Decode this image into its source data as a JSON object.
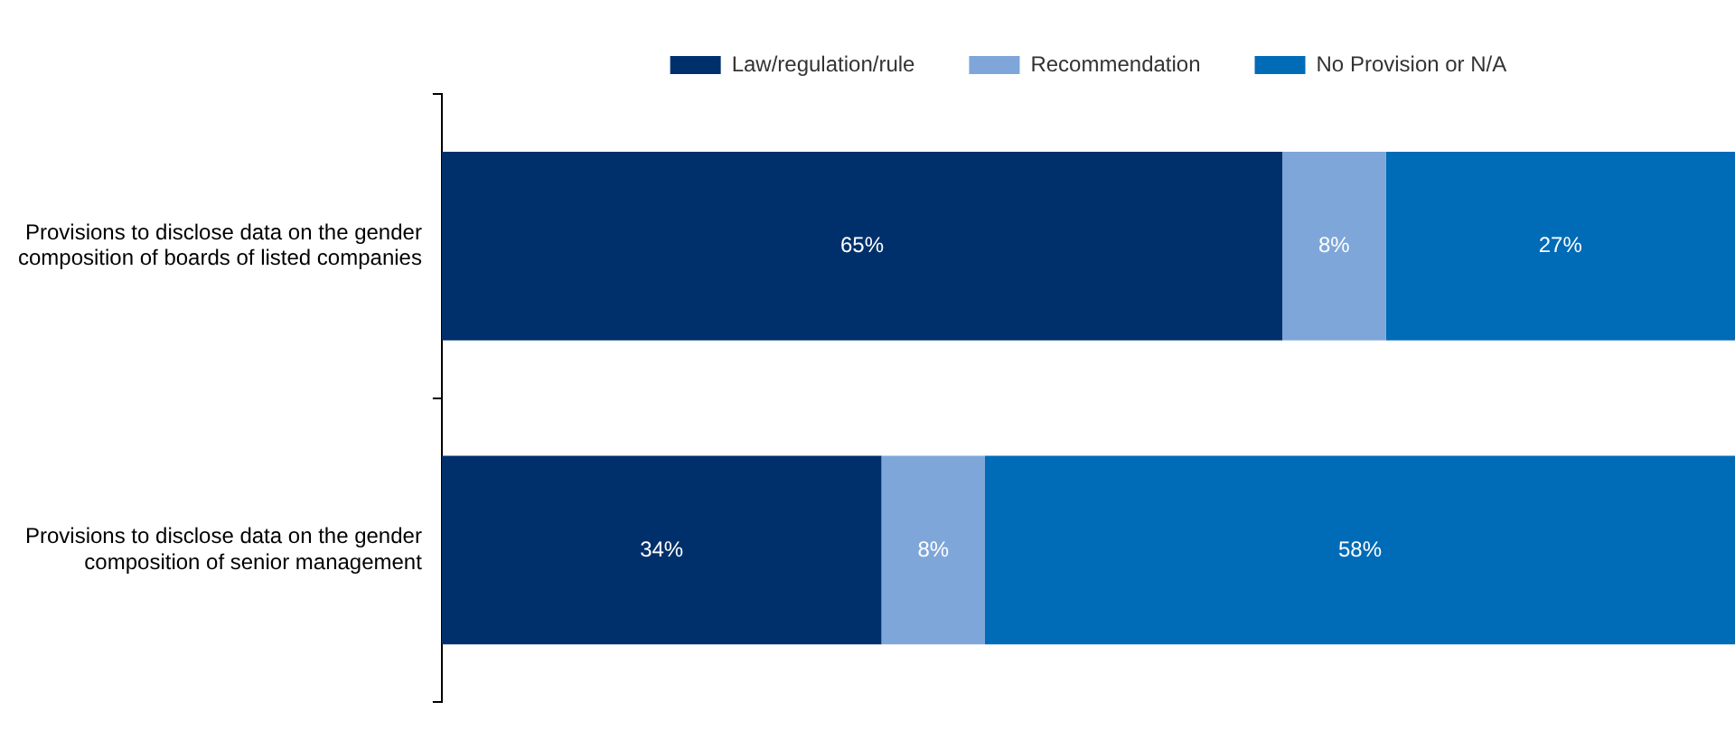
{
  "chart_data": {
    "type": "bar",
    "orientation": "horizontal",
    "stacked": true,
    "categories": [
      "Provisions to disclose data on the gender composition of boards of listed companies",
      "Provisions to disclose data on the gender composition of senior management"
    ],
    "series": [
      {
        "name": "Law/regulation/rule",
        "color": "#00306b",
        "values": [
          65,
          34
        ],
        "value_labels": [
          "65%",
          "34%"
        ]
      },
      {
        "name": "Recommendation",
        "color": "#7ea6d8",
        "values": [
          8,
          8
        ],
        "value_labels": [
          "8%",
          "8%"
        ]
      },
      {
        "name": "No Provision or N/A",
        "color": "#006bb6",
        "values": [
          27,
          58
        ],
        "value_labels": [
          "27%",
          "58%"
        ]
      }
    ],
    "xlim": [
      0,
      100
    ],
    "legend": "top",
    "grid": false
  }
}
